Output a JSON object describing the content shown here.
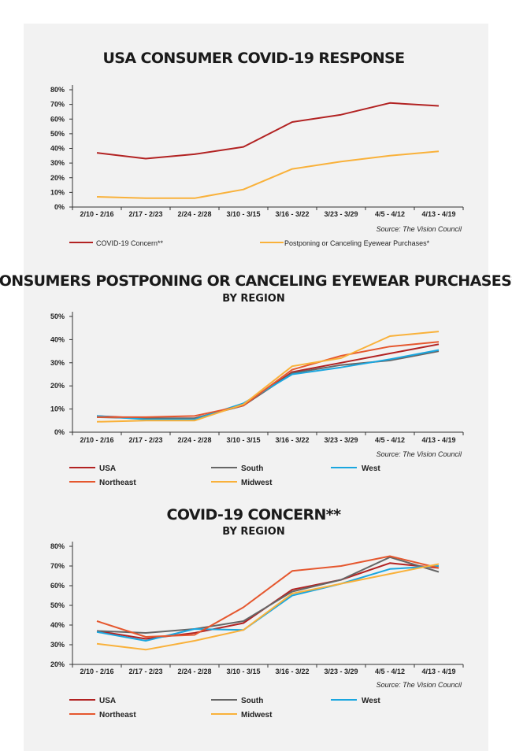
{
  "chart_data": [
    {
      "type": "line",
      "title": "USA CONSUMER COVID-19 RESPONSE",
      "subtitle": "",
      "categories": [
        "2/10 - 2/16",
        "2/17 - 2/23",
        "2/24 - 2/28",
        "3/10 - 3/15",
        "3/16 - 3/22",
        "3/23 - 3/29",
        "4/5 - 4/12",
        "4/13 - 4/19"
      ],
      "ylim": [
        0,
        80
      ],
      "yticks": [
        "0%",
        "10%",
        "20%",
        "30%",
        "40%",
        "50%",
        "60%",
        "70%",
        "80%"
      ],
      "source": "Source: The Vision Council",
      "series": [
        {
          "name": "COVID-19 Concern**",
          "color": "#b22222",
          "values": [
            37,
            33,
            36,
            41,
            58,
            63,
            71,
            69
          ]
        },
        {
          "name": "Postponing or Canceling Eyewear Purchases*",
          "color": "#f9b13a",
          "values": [
            7,
            6,
            6,
            12,
            26,
            31,
            35,
            38
          ]
        }
      ]
    },
    {
      "type": "line",
      "title": "CONSUMERS POSTPONING OR CANCELING EYEWEAR PURCHASES*",
      "subtitle": "BY REGION",
      "categories": [
        "2/10 - 2/16",
        "2/17 - 2/23",
        "2/24 - 2/28",
        "3/10 - 3/15",
        "3/16 - 3/22",
        "3/23 - 3/29",
        "4/5 - 4/12",
        "4/13 - 4/19"
      ],
      "ylim": [
        0,
        50
      ],
      "yticks": [
        "0%",
        "10%",
        "20%",
        "30%",
        "40%",
        "50%"
      ],
      "source": "Source: The Vision Council",
      "series": [
        {
          "name": "USA",
          "color": "#b22222",
          "values": [
            7,
            6,
            6,
            11.5,
            26,
            30,
            34,
            38
          ]
        },
        {
          "name": "South",
          "color": "#666666",
          "values": [
            6.5,
            6,
            6,
            11.5,
            25.5,
            29,
            31,
            35
          ]
        },
        {
          "name": "West",
          "color": "#1aa6df",
          "values": [
            7,
            5.5,
            5.5,
            12.5,
            25,
            28,
            31.5,
            35.5
          ]
        },
        {
          "name": "Northeast",
          "color": "#e5572e",
          "values": [
            6.5,
            6.5,
            7,
            11.5,
            27,
            33,
            37,
            39
          ]
        },
        {
          "name": "Midwest",
          "color": "#f9b13a",
          "values": [
            4.5,
            5,
            5,
            12,
            28.5,
            32,
            41.5,
            43.5
          ]
        }
      ]
    },
    {
      "type": "line",
      "title": "COVID-19 CONCERN**",
      "subtitle": "BY REGION",
      "categories": [
        "2/10 - 2/16",
        "2/17 - 2/23",
        "2/24 - 2/28",
        "3/10 - 3/15",
        "3/16 - 3/22",
        "3/23 - 3/29",
        "4/5 - 4/12",
        "4/13 - 4/19"
      ],
      "ylim": [
        20,
        80
      ],
      "yticks": [
        "20%",
        "30%",
        "40%",
        "50%",
        "60%",
        "70%",
        "80%"
      ],
      "source": "Source: The Vision Council",
      "series": [
        {
          "name": "USA",
          "color": "#b22222",
          "values": [
            37,
            33,
            36,
            41,
            58,
            63,
            71.5,
            69
          ]
        },
        {
          "name": "South",
          "color": "#666666",
          "values": [
            37,
            36,
            38,
            42,
            57,
            63,
            74.5,
            67
          ]
        },
        {
          "name": "West",
          "color": "#1aa6df",
          "values": [
            36.5,
            32,
            38,
            37.5,
            55,
            61,
            68.5,
            70
          ]
        },
        {
          "name": "Northeast",
          "color": "#e5572e",
          "values": [
            42,
            34,
            35,
            49,
            67.5,
            70,
            75,
            69
          ]
        },
        {
          "name": "Midwest",
          "color": "#f9b13a",
          "values": [
            30.5,
            27.5,
            32,
            37.5,
            56,
            61,
            66,
            71
          ]
        }
      ]
    }
  ]
}
